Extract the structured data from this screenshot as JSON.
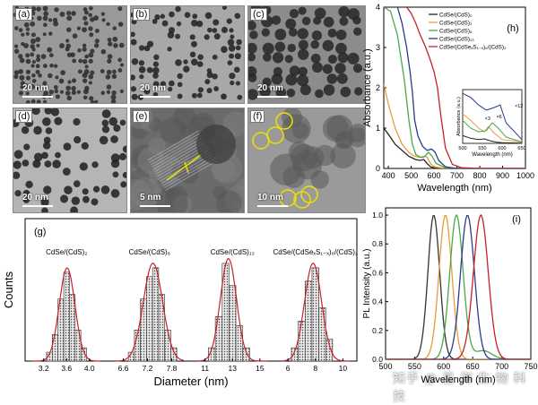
{
  "tem": {
    "a": {
      "label": "(a)",
      "scale": "20 nm"
    },
    "b": {
      "label": "(b)",
      "scale": "20 nm"
    },
    "c": {
      "label": "(c)",
      "scale": "20 nm"
    },
    "d": {
      "label": "(d)",
      "scale": "20 nm"
    },
    "e": {
      "label": "(e)",
      "scale": "5 nm"
    },
    "f": {
      "label": "(f)",
      "scale": "10 nm"
    }
  },
  "watermark": "知乎 @ 星 海 生 物 科 技",
  "chart_data": [
    {
      "type": "line",
      "panel": "(h)",
      "xlabel": "Wavelength (nm)",
      "ylabel": "Absorbance (a.u.)",
      "xlim": [
        380,
        1000
      ],
      "ylim": [
        0,
        4
      ],
      "xticks": [
        400,
        500,
        600,
        700,
        800,
        900,
        1000
      ],
      "yticks": [
        0,
        1,
        2,
        3,
        4
      ],
      "legend_position": "top-right",
      "series": [
        {
          "name": "CdSe/(CdS)₀",
          "color": "#222222",
          "x": [
            380,
            400,
            430,
            460,
            490,
            520,
            540,
            555,
            570,
            585,
            600,
            640,
            700,
            800,
            1000
          ],
          "y": [
            1.0,
            0.85,
            0.6,
            0.45,
            0.3,
            0.22,
            0.2,
            0.22,
            0.12,
            0.04,
            0.02,
            0.01,
            0.0,
            0.0,
            0.0
          ]
        },
        {
          "name": "CdSe/(CdS)₂",
          "color": "#e69e3a",
          "x": [
            380,
            400,
            430,
            460,
            490,
            510,
            530,
            550,
            560,
            570,
            585,
            600,
            640,
            700,
            800,
            1000
          ],
          "y": [
            2.1,
            1.6,
            1.0,
            0.6,
            0.4,
            0.32,
            0.28,
            0.27,
            0.3,
            0.28,
            0.12,
            0.04,
            0.01,
            0.0,
            0.0,
            0.0
          ]
        },
        {
          "name": "CdSe/(CdS)₆",
          "color": "#4aa84a",
          "x": [
            380,
            410,
            440,
            470,
            490,
            505,
            520,
            540,
            560,
            575,
            590,
            610,
            650,
            700,
            800,
            1000
          ],
          "y": [
            4.0,
            3.9,
            3.3,
            2.2,
            1.2,
            0.6,
            0.35,
            0.28,
            0.3,
            0.4,
            0.32,
            0.12,
            0.02,
            0.0,
            0.0,
            0.0
          ]
        },
        {
          "name": "CdSe/(CdS)₁₃",
          "color": "#2a3a8c",
          "x": [
            440,
            460,
            480,
            495,
            505,
            515,
            530,
            550,
            570,
            590,
            605,
            620,
            650,
            700,
            800,
            1000
          ],
          "y": [
            4.0,
            3.6,
            3.0,
            2.4,
            1.9,
            1.2,
            0.8,
            0.55,
            0.45,
            0.48,
            0.4,
            0.2,
            0.04,
            0.0,
            0.0,
            0.0
          ]
        },
        {
          "name": "CdSe/(CdSeₓS₁₋ₓ)₆/(CdS)₂",
          "color": "#c8202a",
          "x": [
            480,
            500,
            520,
            540,
            560,
            580,
            600,
            615,
            630,
            650,
            680,
            720,
            800,
            1000
          ],
          "y": [
            4.0,
            3.85,
            3.6,
            3.3,
            3.05,
            2.75,
            2.4,
            2.0,
            1.3,
            0.5,
            0.1,
            0.02,
            0.0,
            0.0
          ]
        }
      ]
    },
    {
      "type": "line",
      "panel": "(h) inset",
      "xlabel": "Wavelength (nm)",
      "ylabel": "Absorbance (a.u.)",
      "xlim": [
        500,
        650
      ],
      "xticks": [
        500,
        550,
        600,
        650
      ],
      "annotations": [
        "×12",
        "×3",
        "×6"
      ],
      "series": [
        {
          "color": "#222222",
          "x": [
            500,
            520,
            540,
            555,
            570,
            585,
            600,
            650
          ],
          "y": [
            0.6,
            0.4,
            0.3,
            0.35,
            0.2,
            0.1,
            0.05,
            0.02
          ]
        },
        {
          "color": "#e69e3a",
          "x": [
            500,
            520,
            540,
            555,
            565,
            580,
            600,
            650
          ],
          "y": [
            2.3,
            1.8,
            1.2,
            0.9,
            1.3,
            0.8,
            0.3,
            0.1
          ]
        },
        {
          "color": "#4aa84a",
          "x": [
            500,
            520,
            540,
            560,
            575,
            590,
            610,
            650
          ],
          "y": [
            1.8,
            1.2,
            0.9,
            1.0,
            1.6,
            1.2,
            0.5,
            0.1
          ]
        },
        {
          "color": "#2a3a8c",
          "x": [
            500,
            520,
            540,
            560,
            580,
            595,
            610,
            650
          ],
          "y": [
            3.9,
            3.6,
            3.0,
            2.6,
            2.8,
            3.0,
            1.6,
            0.3
          ]
        }
      ]
    },
    {
      "type": "bar",
      "panel": "(g)",
      "xlabel": "Diameter (nm)",
      "ylabel": "Counts",
      "groups": [
        {
          "title": "CdSe/(CdS)₂",
          "xticks": [
            "3.2",
            "3.6",
            "4.0"
          ],
          "xlim": [
            3.0,
            4.2
          ],
          "bin_centers": [
            3.3,
            3.4,
            3.5,
            3.6,
            3.7,
            3.8,
            3.9
          ],
          "values": [
            2,
            6,
            14,
            20,
            15,
            7,
            3
          ]
        },
        {
          "title": "CdSe/(CdS)₆",
          "xticks": [
            "6.6",
            "7.2",
            "7.8"
          ],
          "xlim": [
            6.4,
            8.1
          ],
          "bin_centers": [
            6.8,
            6.95,
            7.1,
            7.25,
            7.4,
            7.55,
            7.7,
            7.85
          ],
          "values": [
            2,
            7,
            14,
            19,
            21,
            15,
            7,
            3
          ]
        },
        {
          "title": "CdSe/(CdS)₁₃",
          "xticks": [
            "11",
            "13",
            "15"
          ],
          "xlim": [
            10.5,
            15.5
          ],
          "bin_centers": [
            11.5,
            12,
            12.5,
            13,
            13.5,
            14
          ],
          "values": [
            3,
            10,
            22,
            17,
            8,
            3
          ]
        },
        {
          "title": "CdSe/(CdSeₓS₁₋ₓ)₆/(CdS)₂",
          "xticks": [
            "6",
            "8",
            "10"
          ],
          "xlim": [
            5.5,
            10.5
          ],
          "bin_centers": [
            6.5,
            7,
            7.5,
            8,
            8.5,
            9
          ],
          "values": [
            3,
            9,
            18,
            21,
            12,
            5
          ]
        }
      ]
    },
    {
      "type": "line",
      "panel": "(i)",
      "xlabel": "Wavelength (nm)",
      "ylabel": "PL Intensity (a.u.)",
      "xlim": [
        500,
        750
      ],
      "ylim": [
        0,
        1.05
      ],
      "xticks": [
        500,
        550,
        600,
        650,
        700,
        750
      ],
      "yticks": [
        0.0,
        0.2,
        0.4,
        0.6,
        0.8,
        1.0
      ],
      "series": [
        {
          "color": "#333333",
          "center": 583,
          "width": 24,
          "secondary": null
        },
        {
          "color": "#e69e3a",
          "center": 603,
          "width": 26,
          "secondary": null
        },
        {
          "color": "#4aa84a",
          "center": 622,
          "width": 27,
          "secondary": {
            "center": 668,
            "height": 0.06
          }
        },
        {
          "color": "#2a3a8c",
          "center": 641,
          "width": 28,
          "secondary": null
        },
        {
          "color": "#c8202a",
          "center": 664,
          "width": 30,
          "secondary": null
        }
      ]
    }
  ]
}
